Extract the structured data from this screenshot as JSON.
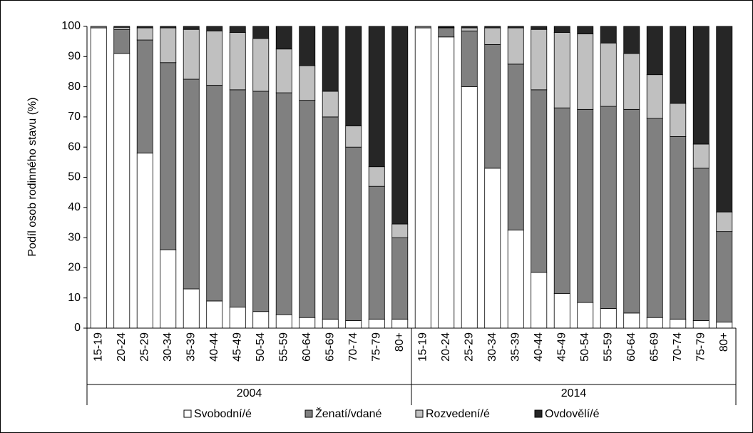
{
  "chart_data": {
    "type": "stacked_bar",
    "y_label": "Podíl osob rodinného stavu (%)",
    "groups": [
      "2004",
      "2014"
    ],
    "categories": [
      "15-19",
      "20-24",
      "25-29",
      "30-34",
      "35-39",
      "40-44",
      "45-49",
      "50-54",
      "55-59",
      "60-64",
      "65-69",
      "70-74",
      "75-79",
      "80+",
      "15-19",
      "20-24",
      "25-29",
      "30-34",
      "35-39",
      "40-44",
      "45-49",
      "50-54",
      "55-59",
      "60-64",
      "65-69",
      "70-74",
      "75-79",
      "80+"
    ],
    "series": [
      {
        "name": "Svobodní/é",
        "color": "#ffffff",
        "values": [
          99.5,
          91,
          58,
          26,
          13,
          9,
          7,
          5.5,
          4.5,
          3.5,
          3,
          2.5,
          3,
          3,
          99.5,
          96.5,
          80,
          53,
          32.5,
          18.5,
          11.5,
          8.5,
          6.5,
          5,
          3.5,
          3,
          2.5,
          2
        ]
      },
      {
        "name": "Ženatí/vdané",
        "color": "#808080",
        "values": [
          0.5,
          8,
          37.5,
          62,
          69.5,
          71.5,
          72,
          73,
          73.5,
          72,
          67,
          57.5,
          44,
          27,
          0.5,
          3,
          18.5,
          41,
          55,
          60.5,
          61.5,
          64,
          67,
          67.5,
          66,
          60.5,
          50.5,
          30
        ]
      },
      {
        "name": "Rozvedení/é",
        "color": "#c0c0c0",
        "values": [
          0,
          0.7,
          4,
          11.5,
          16.5,
          18,
          19,
          17.5,
          14.5,
          11.5,
          8.5,
          7,
          6.5,
          4.5,
          0,
          0.2,
          1,
          5.5,
          12,
          20,
          25,
          25,
          21,
          18.5,
          14.5,
          11,
          8,
          6.5
        ]
      },
      {
        "name": "Ovdovělí/é",
        "color": "#262626",
        "values": [
          0,
          0.3,
          0.5,
          0.5,
          1,
          1.5,
          2,
          4,
          7.5,
          13,
          21.5,
          33,
          46.5,
          65.5,
          0,
          0.3,
          0.5,
          0.5,
          0.5,
          1,
          2,
          2.5,
          5.5,
          9,
          16,
          25.5,
          39,
          61.5
        ]
      }
    ],
    "ylim": [
      0,
      100
    ],
    "yticks": [
      0,
      10,
      20,
      30,
      40,
      50,
      60,
      70,
      80,
      90,
      100
    ],
    "legend": "bottom"
  }
}
